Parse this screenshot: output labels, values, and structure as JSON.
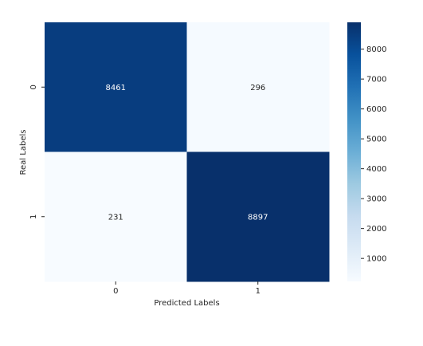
{
  "chart_data": {
    "type": "heatmap",
    "title": "",
    "xlabel": "Predicted Labels",
    "ylabel": "Real Labels",
    "x_categories": [
      "0",
      "1"
    ],
    "y_categories": [
      "0",
      "1"
    ],
    "values": [
      [
        8461,
        296
      ],
      [
        231,
        8897
      ]
    ],
    "colormap": "Blues",
    "vmin": 231,
    "vmax": 8897,
    "colorbar_ticks": [
      1000,
      2000,
      3000,
      4000,
      5000,
      6000,
      7000,
      8000
    ],
    "annotations": true,
    "colors": {
      "low": "#f7fbff",
      "high": "#08306b",
      "text_dark": "#262626",
      "text_light": "#ffffff"
    }
  }
}
